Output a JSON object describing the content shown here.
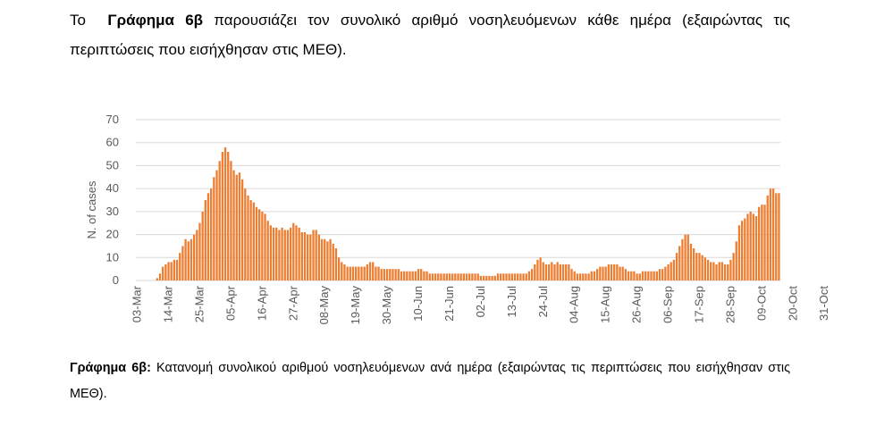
{
  "intro": {
    "prefix": "Το",
    "bold": "Γράφημα 6β",
    "text": "παρουσιάζει τον συνολικό αριθμό νοσηλευόμενων κάθε ημέρα (εξαιρώντας τις περιπτώσεις που εισήχθησαν στις ΜΕΘ)."
  },
  "caption": {
    "bold": "Γράφημα 6β:",
    "text": "Κατανομή συνολικού αριθμού νοσηλευόμενων ανά ημέρα (εξαιρώντας τις περιπτώσεις που εισήχθησαν στις ΜΕΘ)."
  },
  "chart_data": {
    "type": "bar",
    "ylabel": "N. of cases",
    "ylim": [
      0,
      70
    ],
    "yticks": [
      0,
      10,
      20,
      30,
      40,
      50,
      60,
      70
    ],
    "grid": true,
    "bar_color": "#ED7D31",
    "categories": [
      "03-Mar",
      "14-Mar",
      "25-Mar",
      "05-Apr",
      "16-Apr",
      "27-Apr",
      "08-May",
      "19-May",
      "30-May",
      "10-Jun",
      "21-Jun",
      "02-Jul",
      "13-Jul",
      "24-Jul",
      "04-Aug",
      "15-Aug",
      "26-Aug",
      "06-Sep",
      "17-Sep",
      "28-Sep",
      "09-Oct",
      "20-Oct",
      "31-Oct"
    ],
    "values_by_day": [
      0,
      0,
      0,
      0,
      0,
      0,
      0,
      1,
      3,
      6,
      7,
      8,
      8,
      9,
      9,
      12,
      15,
      18,
      17,
      18,
      20,
      22,
      25,
      30,
      35,
      38,
      40,
      45,
      48,
      52,
      56,
      58,
      56,
      52,
      48,
      46,
      47,
      44,
      40,
      37,
      35,
      34,
      32,
      31,
      30,
      29,
      26,
      24,
      23,
      23,
      22,
      23,
      22,
      22,
      23,
      25,
      24,
      23,
      21,
      21,
      20,
      20,
      22,
      22,
      20,
      18,
      18,
      17,
      18,
      16,
      14,
      10,
      8,
      7,
      6,
      6,
      6,
      6,
      6,
      6,
      6,
      7,
      8,
      8,
      6,
      6,
      5,
      5,
      5,
      5,
      5,
      5,
      5,
      4,
      4,
      4,
      4,
      4,
      4,
      5,
      5,
      4,
      4,
      3,
      3,
      3,
      3,
      3,
      3,
      3,
      3,
      3,
      3,
      3,
      3,
      3,
      3,
      3,
      3,
      3,
      3,
      2,
      2,
      2,
      2,
      2,
      2,
      3,
      3,
      3,
      3,
      3,
      3,
      3,
      3,
      3,
      3,
      3,
      4,
      5,
      7,
      9,
      10,
      8,
      7,
      7,
      8,
      7,
      8,
      7,
      7,
      7,
      7,
      5,
      4,
      3,
      3,
      3,
      3,
      3,
      4,
      4,
      5,
      6,
      6,
      6,
      7,
      7,
      7,
      7,
      6,
      6,
      5,
      4,
      4,
      4,
      3,
      3,
      4,
      4,
      4,
      4,
      4,
      4,
      5,
      5,
      6,
      7,
      8,
      9,
      12,
      15,
      18,
      20,
      20,
      16,
      14,
      12,
      12,
      11,
      10,
      9,
      8,
      8,
      7,
      8,
      8,
      7,
      7,
      9,
      12,
      17,
      24,
      26,
      27,
      29,
      30,
      29,
      28,
      32,
      33,
      33,
      37,
      40,
      40,
      38,
      38
    ]
  }
}
